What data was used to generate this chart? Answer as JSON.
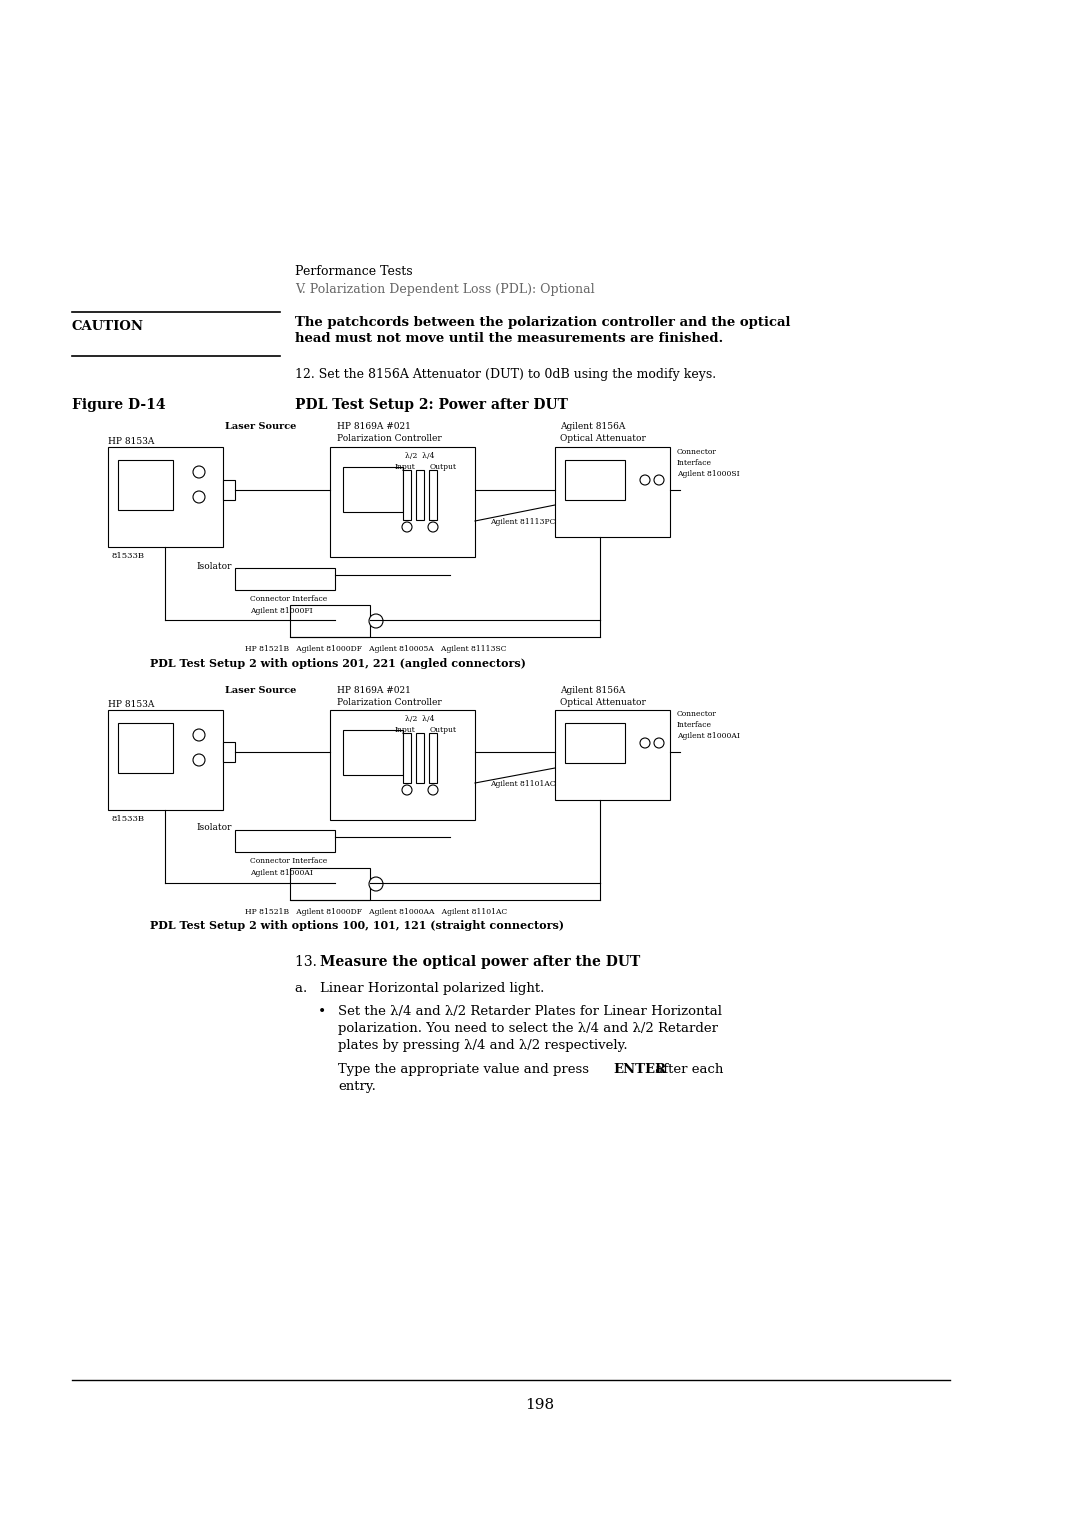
{
  "background_color": "#ffffff",
  "page_width": 10.8,
  "page_height": 15.28,
  "header_line1": "Performance Tests",
  "header_line2": "V. Polarization Dependent Loss (PDL): Optional",
  "caution_label": "CAUTION",
  "caution_text_line1": "The patchcords between the polarization controller and the optical",
  "caution_text_line2": "head must not move until the measurements are finished.",
  "step12_text": "12. Set the 8156A Attenuator (DUT) to 0dB using the modify keys.",
  "figure_label": "Figure D-14",
  "figure_title": "PDL Test Setup 2: Power after DUT",
  "diagram1_caption": "PDL Test Setup 2 with options 201, 221 (angled connectors)",
  "diagram2_caption": "PDL Test Setup 2 with options 100, 101, 121 (straight connectors)",
  "step13_prefix": "13. ",
  "step13_bold": "Measure the optical power after the DUT",
  "step_a": "a.   Linear Horizontal polarized light.",
  "bullet_line1": "Set the λ/4 and λ/2 Retarder Plates for Linear Horizontal",
  "bullet_line2": "polarization. You need to select the λ/4 and λ/2 Retarder",
  "bullet_line3": "plates by pressing λ/4 and λ/2 respectively.",
  "type_line1_pre": "Type the appropriate value and press ",
  "type_enter": "ENTER",
  "type_line1_post": " after each",
  "type_line2": "entry.",
  "page_number": "198",
  "d1_laser_label": "Laser Source",
  "d1_hp8153a": "HP 8153A",
  "d1_81533b": "81533B",
  "d1_hp8169a": "HP 8169A #021",
  "d1_pol_ctrl": "Polarization Controller",
  "d1_agilent8156a": "Agilent 8156A",
  "d1_opt_att": "Optical Attenuator",
  "d1_connector": "Connector",
  "d1_interface": "Interface",
  "d1_ci_model": "Agilent 81000SI",
  "d1_lambda": "λ/2  λ/4",
  "d1_input": "Input",
  "d1_output": "Output",
  "d1_isolator": "Isolator",
  "d1_81113pc": "Agilent 81113PC",
  "d1_conn_int": "Connector Interface",
  "d1_81000fi": "Agilent 81000FI",
  "d1_bottom": "HP 81521B   Agilent 81000DF   Agilent 810005A   Agilent 81113SC",
  "d2_laser_label": "Laser Source",
  "d2_hp8153a": "HP 8153A",
  "d2_81533b": "81533B",
  "d2_hp8169a": "HP 8169A #021",
  "d2_pol_ctrl": "Polarization Controller",
  "d2_agilent8156a": "Agilent 8156A",
  "d2_opt_att": "Optical Attenuator",
  "d2_connector": "Connector",
  "d2_interface": "Interface",
  "d2_ci_model": "Agilent 81000AI",
  "d2_lambda": "λ/2  λ/4",
  "d2_input": "Input",
  "d2_output": "Output",
  "d2_isolator": "Isolator",
  "d2_81101ac": "Agilent 81101AC",
  "d2_conn_int": "Connector Interface",
  "d2_81000ai": "Agilent 81000AI",
  "d2_bottom": "HP 81521B   Agilent 81000DF   Agilent 81000AA   Agilent 81101AC"
}
